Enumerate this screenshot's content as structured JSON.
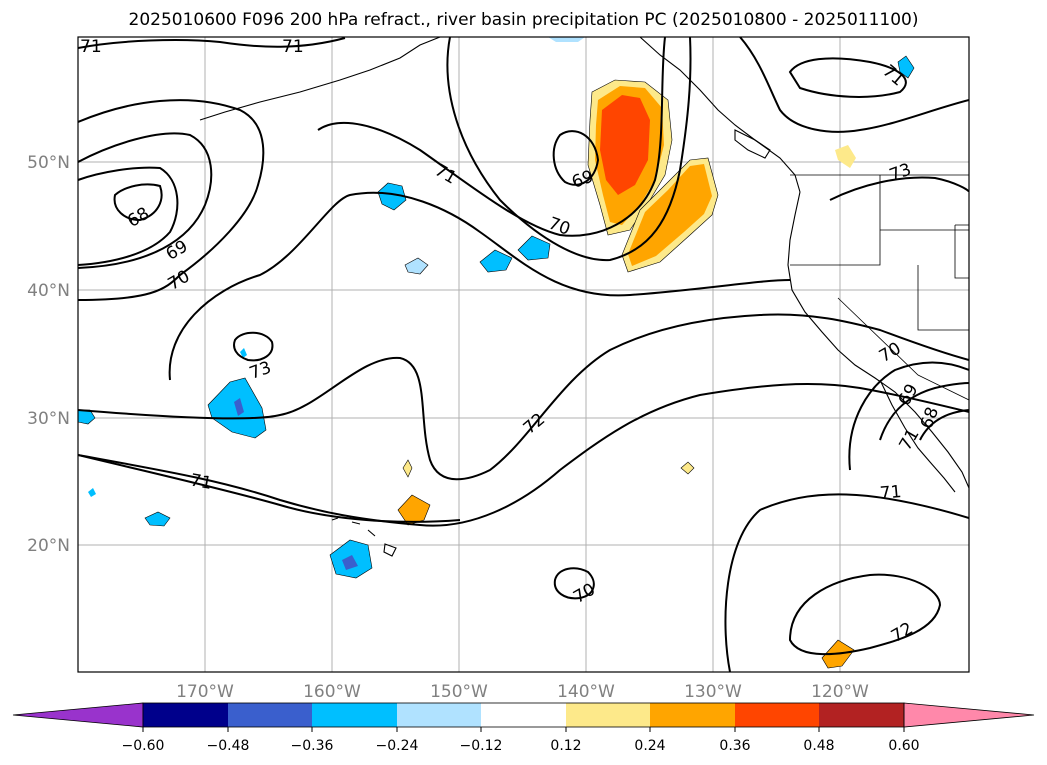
{
  "title": "2025010600 F096 200 hPa refract., river basin precipitation PC (2025010800 - 2025011100)",
  "map": {
    "lat_labels": [
      "50°N",
      "40°N",
      "30°N",
      "20°N"
    ],
    "lon_labels": [
      "170°W",
      "160°W",
      "150°W",
      "140°W",
      "130°W",
      "120°W"
    ],
    "contour_labels": [
      "71",
      "71",
      "68",
      "69",
      "70",
      "71",
      "69",
      "70",
      "73",
      "72",
      "71",
      "70",
      "71",
      "72",
      "73",
      "70",
      "69",
      "68",
      "71",
      "71"
    ]
  },
  "colorbar": {
    "ticks": [
      "−0.60",
      "−0.48",
      "−0.36",
      "−0.24",
      "−0.12",
      "0.12",
      "0.24",
      "0.36",
      "0.48",
      "0.60"
    ],
    "colors": {
      "under": "#9933cc",
      "c1": "#00008b",
      "c2": "#3a5fcd",
      "c3": "#00bfff",
      "c4": "#b0e2ff",
      "c5": "#ffffff",
      "c6": "#fde98a",
      "c7": "#ffa500",
      "c8": "#ff4500",
      "c9": "#b22222",
      "over": "#ff88aa"
    }
  }
}
